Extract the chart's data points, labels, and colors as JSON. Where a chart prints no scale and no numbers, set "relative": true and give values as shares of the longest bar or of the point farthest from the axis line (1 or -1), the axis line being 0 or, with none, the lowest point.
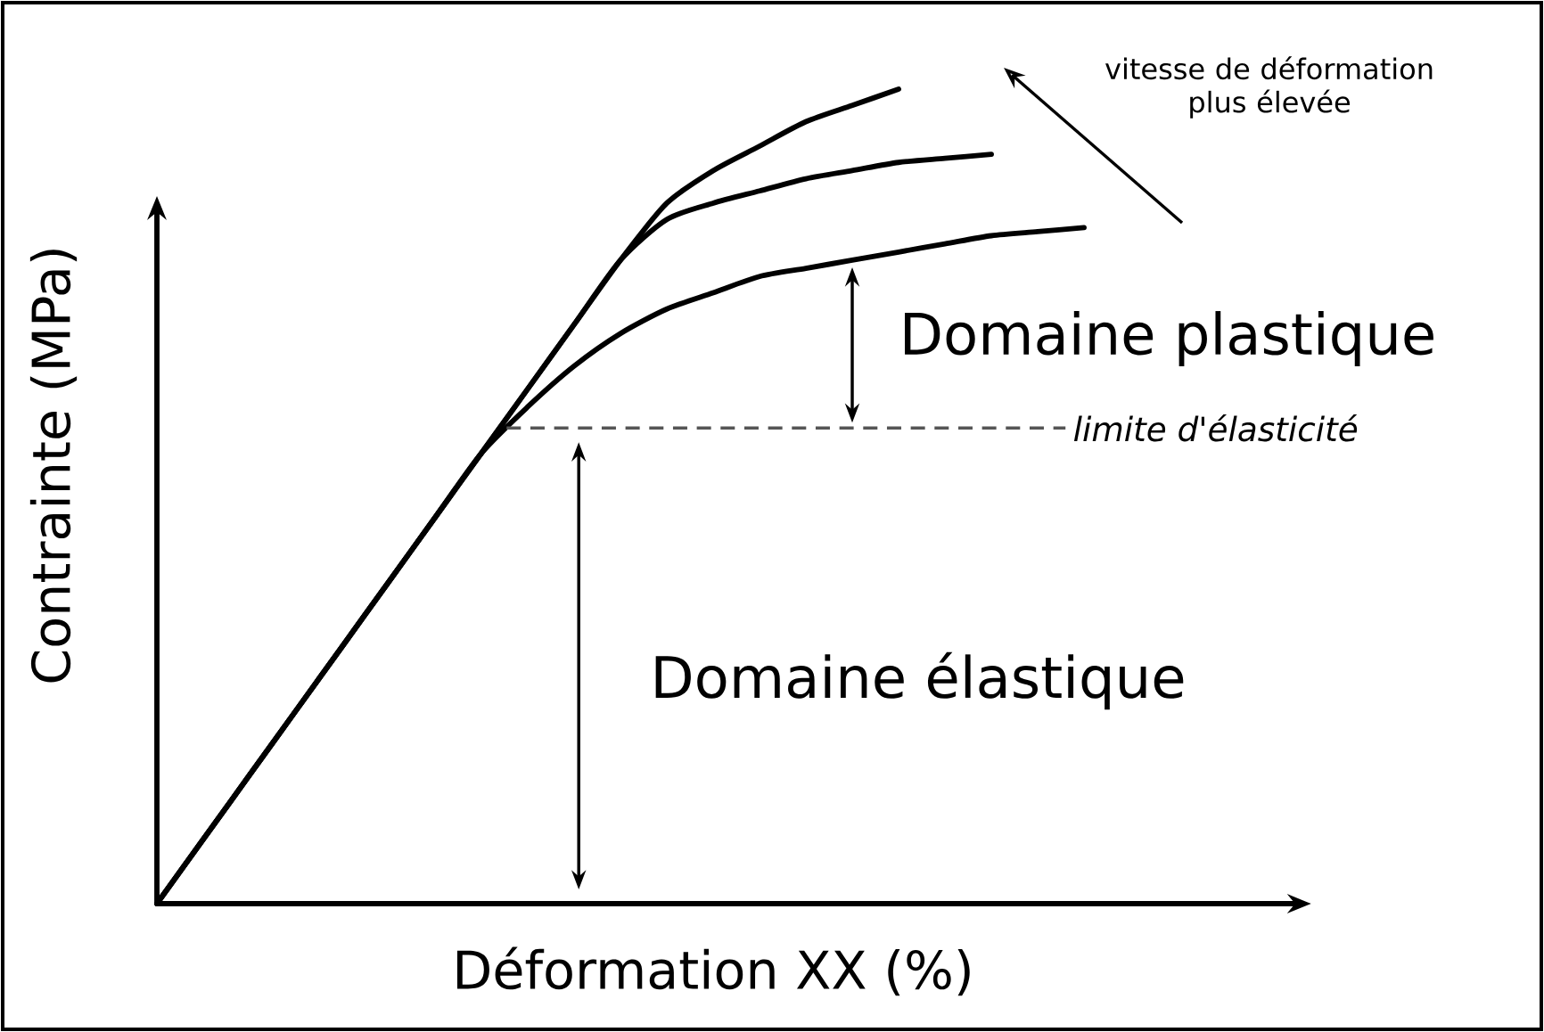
{
  "chart_data": {
    "type": "line",
    "relative": true,
    "xlabel": "Déformation XX (%)",
    "ylabel": "Contrainte (MPa)",
    "categories": [
      null,
      null,
      null,
      null,
      null,
      null,
      null,
      null,
      null,
      null,
      null,
      null,
      null,
      null,
      null,
      null,
      null,
      null,
      null,
      null,
      null
    ],
    "series": [
      {
        "color": "#000000",
        "values": [
          0,
          0.079,
          0.158,
          0.237,
          0.316,
          0.395,
          0.474,
          0.553,
          0.61,
          0.66,
          0.7,
          0.73,
          0.75,
          0.77,
          0.78,
          0.79,
          0.8,
          0.81,
          0.82,
          0.825,
          0.83
        ]
      },
      {
        "color": "#000000",
        "values": [
          0,
          0.079,
          0.158,
          0.237,
          0.316,
          0.395,
          0.474,
          0.553,
          0.632,
          0.711,
          0.79,
          0.84,
          0.86,
          0.875,
          0.89,
          0.9,
          0.91,
          0.915,
          0.92,
          null,
          null
        ]
      },
      {
        "color": "#000000",
        "values": [
          0,
          0.079,
          0.158,
          0.237,
          0.316,
          0.395,
          0.474,
          0.553,
          0.632,
          0.711,
          0.79,
          0.86,
          0.9,
          0.93,
          0.96,
          0.98,
          1.0,
          null,
          null,
          null,
          null
        ]
      }
    ],
    "ref_lines": [
      {
        "axis": "y",
        "value": 0.584,
        "label": "limite d'élasticité",
        "color": "#555555",
        "line_style": "dashed"
      }
    ],
    "annotations": [
      "Domaine plastique",
      "Domaine élastique",
      "vitesse de déformation plus élevée"
    ],
    "marker": "none",
    "line_style": "solid"
  }
}
